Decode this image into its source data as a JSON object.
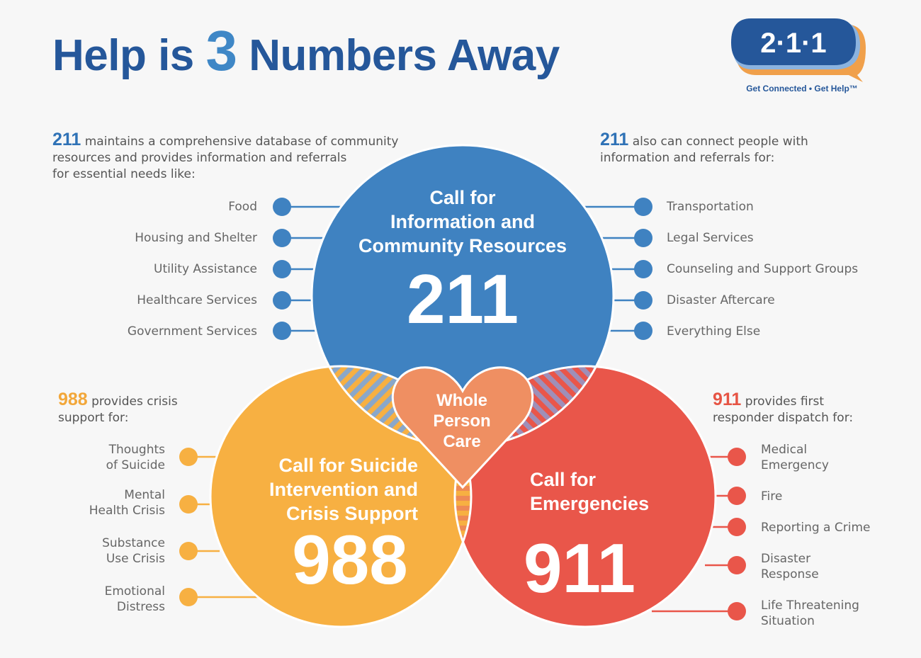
{
  "title": {
    "prefix": "Help is",
    "number": "3",
    "suffix": "Numbers Away"
  },
  "logo": {
    "text": "2·1·1",
    "tagline": "Get Connected • Get Help™"
  },
  "intro_211_left": {
    "number": "211",
    "line1": "maintains a comprehensive database of community",
    "line2": "resources and provides information and referrals",
    "line3": "for essential needs like:"
  },
  "intro_211_right": {
    "number": "211",
    "line1": "also can connect people with",
    "line2": "information and referrals for:"
  },
  "intro_988": {
    "number": "988",
    "line1": "provides crisis",
    "line2": "support for:"
  },
  "intro_911": {
    "number": "911",
    "line1": "provides first",
    "line2": "responder dispatch for:"
  },
  "circle_211": {
    "line1": "Call for",
    "line2": "Information and",
    "line3": "Community Resources",
    "number": "211"
  },
  "circle_988": {
    "line1": "Call for Suicide",
    "line2": "Intervention and",
    "line3": "Crisis Support",
    "number": "988"
  },
  "circle_911": {
    "line1": "Call for",
    "line2": "Emergencies",
    "number": "911"
  },
  "heart": {
    "line1": "Whole",
    "line2": "Person",
    "line3": "Care"
  },
  "needs_left": [
    "Food",
    "Housing and Shelter",
    "Utility Assistance",
    "Healthcare Services",
    "Government Services"
  ],
  "needs_right": [
    "Transportation",
    "Legal Services",
    "Counseling and Support Groups",
    "Disaster Aftercare",
    "Everything Else"
  ],
  "crisis_988": [
    {
      "line1": "Thoughts",
      "line2": "of Suicide"
    },
    {
      "line1": "Mental",
      "line2": "Health Crisis"
    },
    {
      "line1": "Substance",
      "line2": "Use Crisis"
    },
    {
      "line1": "Emotional",
      "line2": "Distress"
    }
  ],
  "dispatch_911": [
    {
      "line1": "Medical",
      "line2": "Emergency"
    },
    {
      "line1": "Fire",
      "line2": ""
    },
    {
      "line1": "Reporting a Crime",
      "line2": ""
    },
    {
      "line1": "Disaster",
      "line2": "Response"
    },
    {
      "line1": "Life Threatening",
      "line2": "Situation"
    }
  ],
  "colors": {
    "blue": "#3f82c1",
    "orange": "#f7b042",
    "red": "#e9564a",
    "heart": "#ef8f62",
    "title": "#25579a"
  }
}
